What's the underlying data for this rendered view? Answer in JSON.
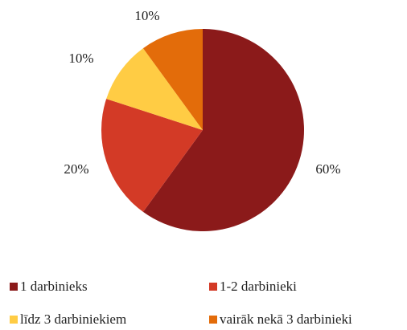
{
  "chart_data": {
    "type": "pie",
    "categories": [
      "1 darbinieks",
      "1-2 darbinieki",
      "līdz 3 darbiniekiem",
      "vairāk nekā 3 darbinieki"
    ],
    "values": [
      60,
      20,
      10,
      10
    ],
    "value_labels": [
      "60%",
      "20%",
      "10%",
      "10%"
    ],
    "colors": [
      "#8b1a1a",
      "#d33a26",
      "#ffcc44",
      "#e36c0a"
    ],
    "legend": "bottom"
  }
}
